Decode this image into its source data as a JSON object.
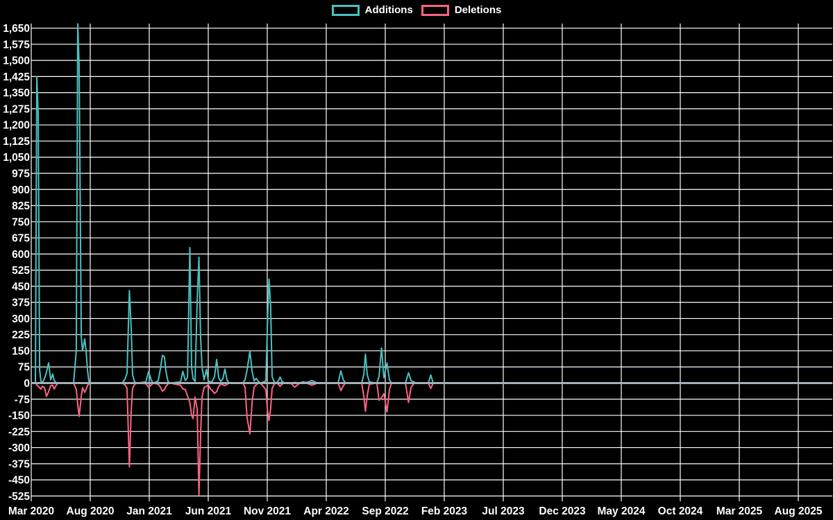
{
  "legend": {
    "additions_label": "Additions",
    "deletions_label": "Deletions"
  },
  "colors": {
    "background": "#000000",
    "grid": "#ffffff",
    "text": "#ffffff",
    "zero_line": "#a6b0b9",
    "additions": "#4bc0c0",
    "deletions": "#ff6384"
  },
  "chart_data": {
    "type": "line",
    "title": "",
    "legend_entries": [
      "Additions",
      "Deletions"
    ],
    "legend_position": "top-center",
    "grid": "on",
    "x_axis": {
      "kind": "time",
      "tick_labels": [
        "Mar 2020",
        "Aug 2020",
        "Jan 2021",
        "Jun 2021",
        "Nov 2021",
        "Apr 2022",
        "Sep 2022",
        "Feb 2023",
        "Jul 2023",
        "Dec 2023",
        "May 2024",
        "Oct 2024",
        "Mar 2025",
        "Aug 2025"
      ],
      "months_per_tick": 5
    },
    "y_axis": {
      "min": -525,
      "max": 1650,
      "step": 75,
      "tick_labels": [
        "1,650",
        "1,575",
        "1,500",
        "1,425",
        "1,350",
        "1,275",
        "1,200",
        "1,125",
        "1,050",
        "975",
        "900",
        "825",
        "750",
        "675",
        "600",
        "525",
        "450",
        "375",
        "300",
        "225",
        "150",
        "75",
        "0",
        "-75",
        "-150",
        "-225",
        "-300",
        "-375",
        "-450",
        "-525"
      ]
    },
    "series_meta": [
      {
        "name": "Additions",
        "color": "#4bc0c0"
      },
      {
        "name": "Deletions",
        "color": "#ff6384"
      }
    ],
    "note": "points are [months_after_Mar_2020, additions_value, deletions_value]; deletions plotted negative; both series flat at 0 after Feb 2023 through Aug 2025",
    "points": [
      [
        0.35,
        0,
        0
      ],
      [
        0.47,
        1423,
        -8
      ],
      [
        0.59,
        1250,
        -15
      ],
      [
        0.71,
        60,
        -22
      ],
      [
        0.82,
        10,
        -28
      ],
      [
        0.94,
        0,
        -15
      ],
      [
        1.12,
        20,
        -20
      ],
      [
        1.29,
        50,
        -62
      ],
      [
        1.47,
        94,
        -40
      ],
      [
        1.65,
        15,
        -12
      ],
      [
        1.82,
        42,
        -10
      ],
      [
        1.94,
        12,
        -28
      ],
      [
        2.12,
        2,
        -10
      ],
      [
        2.29,
        0,
        0
      ],
      [
        3.59,
        0,
        0
      ],
      [
        3.82,
        150,
        -30
      ],
      [
        3.94,
        1670,
        -100
      ],
      [
        4.06,
        1475,
        -155
      ],
      [
        4.24,
        215,
        -60
      ],
      [
        4.35,
        150,
        -22
      ],
      [
        4.53,
        205,
        -43
      ],
      [
        4.65,
        148,
        -30
      ],
      [
        4.76,
        65,
        -12
      ],
      [
        4.88,
        8,
        -4
      ],
      [
        5.06,
        0,
        0
      ],
      [
        7.71,
        0,
        0
      ],
      [
        7.94,
        18,
        -8
      ],
      [
        8.12,
        45,
        -25
      ],
      [
        8.32,
        430,
        -390
      ],
      [
        8.47,
        255,
        -130
      ],
      [
        8.59,
        38,
        -25
      ],
      [
        8.76,
        5,
        -6
      ],
      [
        8.94,
        0,
        0
      ],
      [
        9.71,
        5,
        -3
      ],
      [
        9.94,
        53,
        -19
      ],
      [
        10.18,
        12,
        -8
      ],
      [
        10.35,
        0,
        0
      ],
      [
        10.76,
        10,
        -5
      ],
      [
        10.94,
        65,
        -18
      ],
      [
        11.12,
        129,
        -38
      ],
      [
        11.29,
        122,
        -30
      ],
      [
        11.41,
        55,
        -15
      ],
      [
        11.59,
        8,
        -4
      ],
      [
        11.76,
        0,
        0
      ],
      [
        12.65,
        5,
        -10
      ],
      [
        12.85,
        54,
        -27
      ],
      [
        13.06,
        12,
        -30
      ],
      [
        13.24,
        25,
        -60
      ],
      [
        13.44,
        630,
        -90
      ],
      [
        13.59,
        75,
        -150
      ],
      [
        13.71,
        20,
        -165
      ],
      [
        13.88,
        8,
        -65
      ],
      [
        14.06,
        380,
        -120
      ],
      [
        14.21,
        585,
        -520
      ],
      [
        14.35,
        220,
        -250
      ],
      [
        14.47,
        75,
        -65
      ],
      [
        14.65,
        15,
        -20
      ],
      [
        14.85,
        64,
        -15
      ],
      [
        15.0,
        10,
        -8
      ],
      [
        15.18,
        5,
        -27
      ],
      [
        15.35,
        8,
        -35
      ],
      [
        15.53,
        30,
        -48
      ],
      [
        15.71,
        110,
        -40
      ],
      [
        15.88,
        25,
        -15
      ],
      [
        16.06,
        8,
        -5
      ],
      [
        16.24,
        20,
        -8
      ],
      [
        16.41,
        65,
        -12
      ],
      [
        16.59,
        15,
        -6
      ],
      [
        16.76,
        0,
        0
      ],
      [
        17.94,
        0,
        0
      ],
      [
        18.12,
        15,
        -20
      ],
      [
        18.29,
        60,
        -160
      ],
      [
        18.53,
        148,
        -236
      ],
      [
        18.71,
        57,
        -90
      ],
      [
        18.88,
        10,
        -20
      ],
      [
        19.06,
        22,
        -8
      ],
      [
        19.24,
        8,
        0
      ],
      [
        19.41,
        0,
        0
      ],
      [
        19.88,
        10,
        -30
      ],
      [
        20.0,
        245,
        -117
      ],
      [
        20.15,
        483,
        -174
      ],
      [
        20.29,
        358,
        -120
      ],
      [
        20.41,
        30,
        -25
      ],
      [
        20.59,
        5,
        -5
      ],
      [
        20.76,
        0,
        0
      ],
      [
        20.94,
        10,
        -5
      ],
      [
        21.09,
        28,
        -15
      ],
      [
        21.24,
        8,
        -5
      ],
      [
        21.47,
        0,
        0
      ],
      [
        22.06,
        0,
        -3
      ],
      [
        22.32,
        3,
        -19
      ],
      [
        22.53,
        2,
        -10
      ],
      [
        22.76,
        0,
        0
      ],
      [
        23.0,
        6,
        -2
      ],
      [
        23.24,
        3,
        0
      ],
      [
        23.53,
        5,
        -4
      ],
      [
        23.76,
        12,
        -10
      ],
      [
        24.0,
        6,
        -6
      ],
      [
        24.24,
        0,
        0
      ],
      [
        26.0,
        0,
        0
      ],
      [
        26.24,
        57,
        -35
      ],
      [
        26.44,
        15,
        -12
      ],
      [
        26.65,
        0,
        0
      ],
      [
        28.0,
        0,
        0
      ],
      [
        28.18,
        40,
        -60
      ],
      [
        28.32,
        134,
        -131
      ],
      [
        28.47,
        40,
        -60
      ],
      [
        28.65,
        5,
        -5
      ],
      [
        29.29,
        0,
        0
      ],
      [
        29.47,
        30,
        -80
      ],
      [
        29.68,
        163,
        -68
      ],
      [
        29.88,
        25,
        -50
      ],
      [
        30.15,
        93,
        -134
      ],
      [
        30.35,
        15,
        -30
      ],
      [
        30.53,
        0,
        0
      ],
      [
        31.71,
        0,
        0
      ],
      [
        31.97,
        48,
        -90
      ],
      [
        32.18,
        12,
        -20
      ],
      [
        32.41,
        5,
        -3
      ],
      [
        32.65,
        0,
        0
      ],
      [
        33.65,
        0,
        0
      ],
      [
        33.86,
        37,
        -25
      ],
      [
        34.06,
        0,
        0
      ],
      [
        67.9,
        0,
        0
      ]
    ]
  }
}
